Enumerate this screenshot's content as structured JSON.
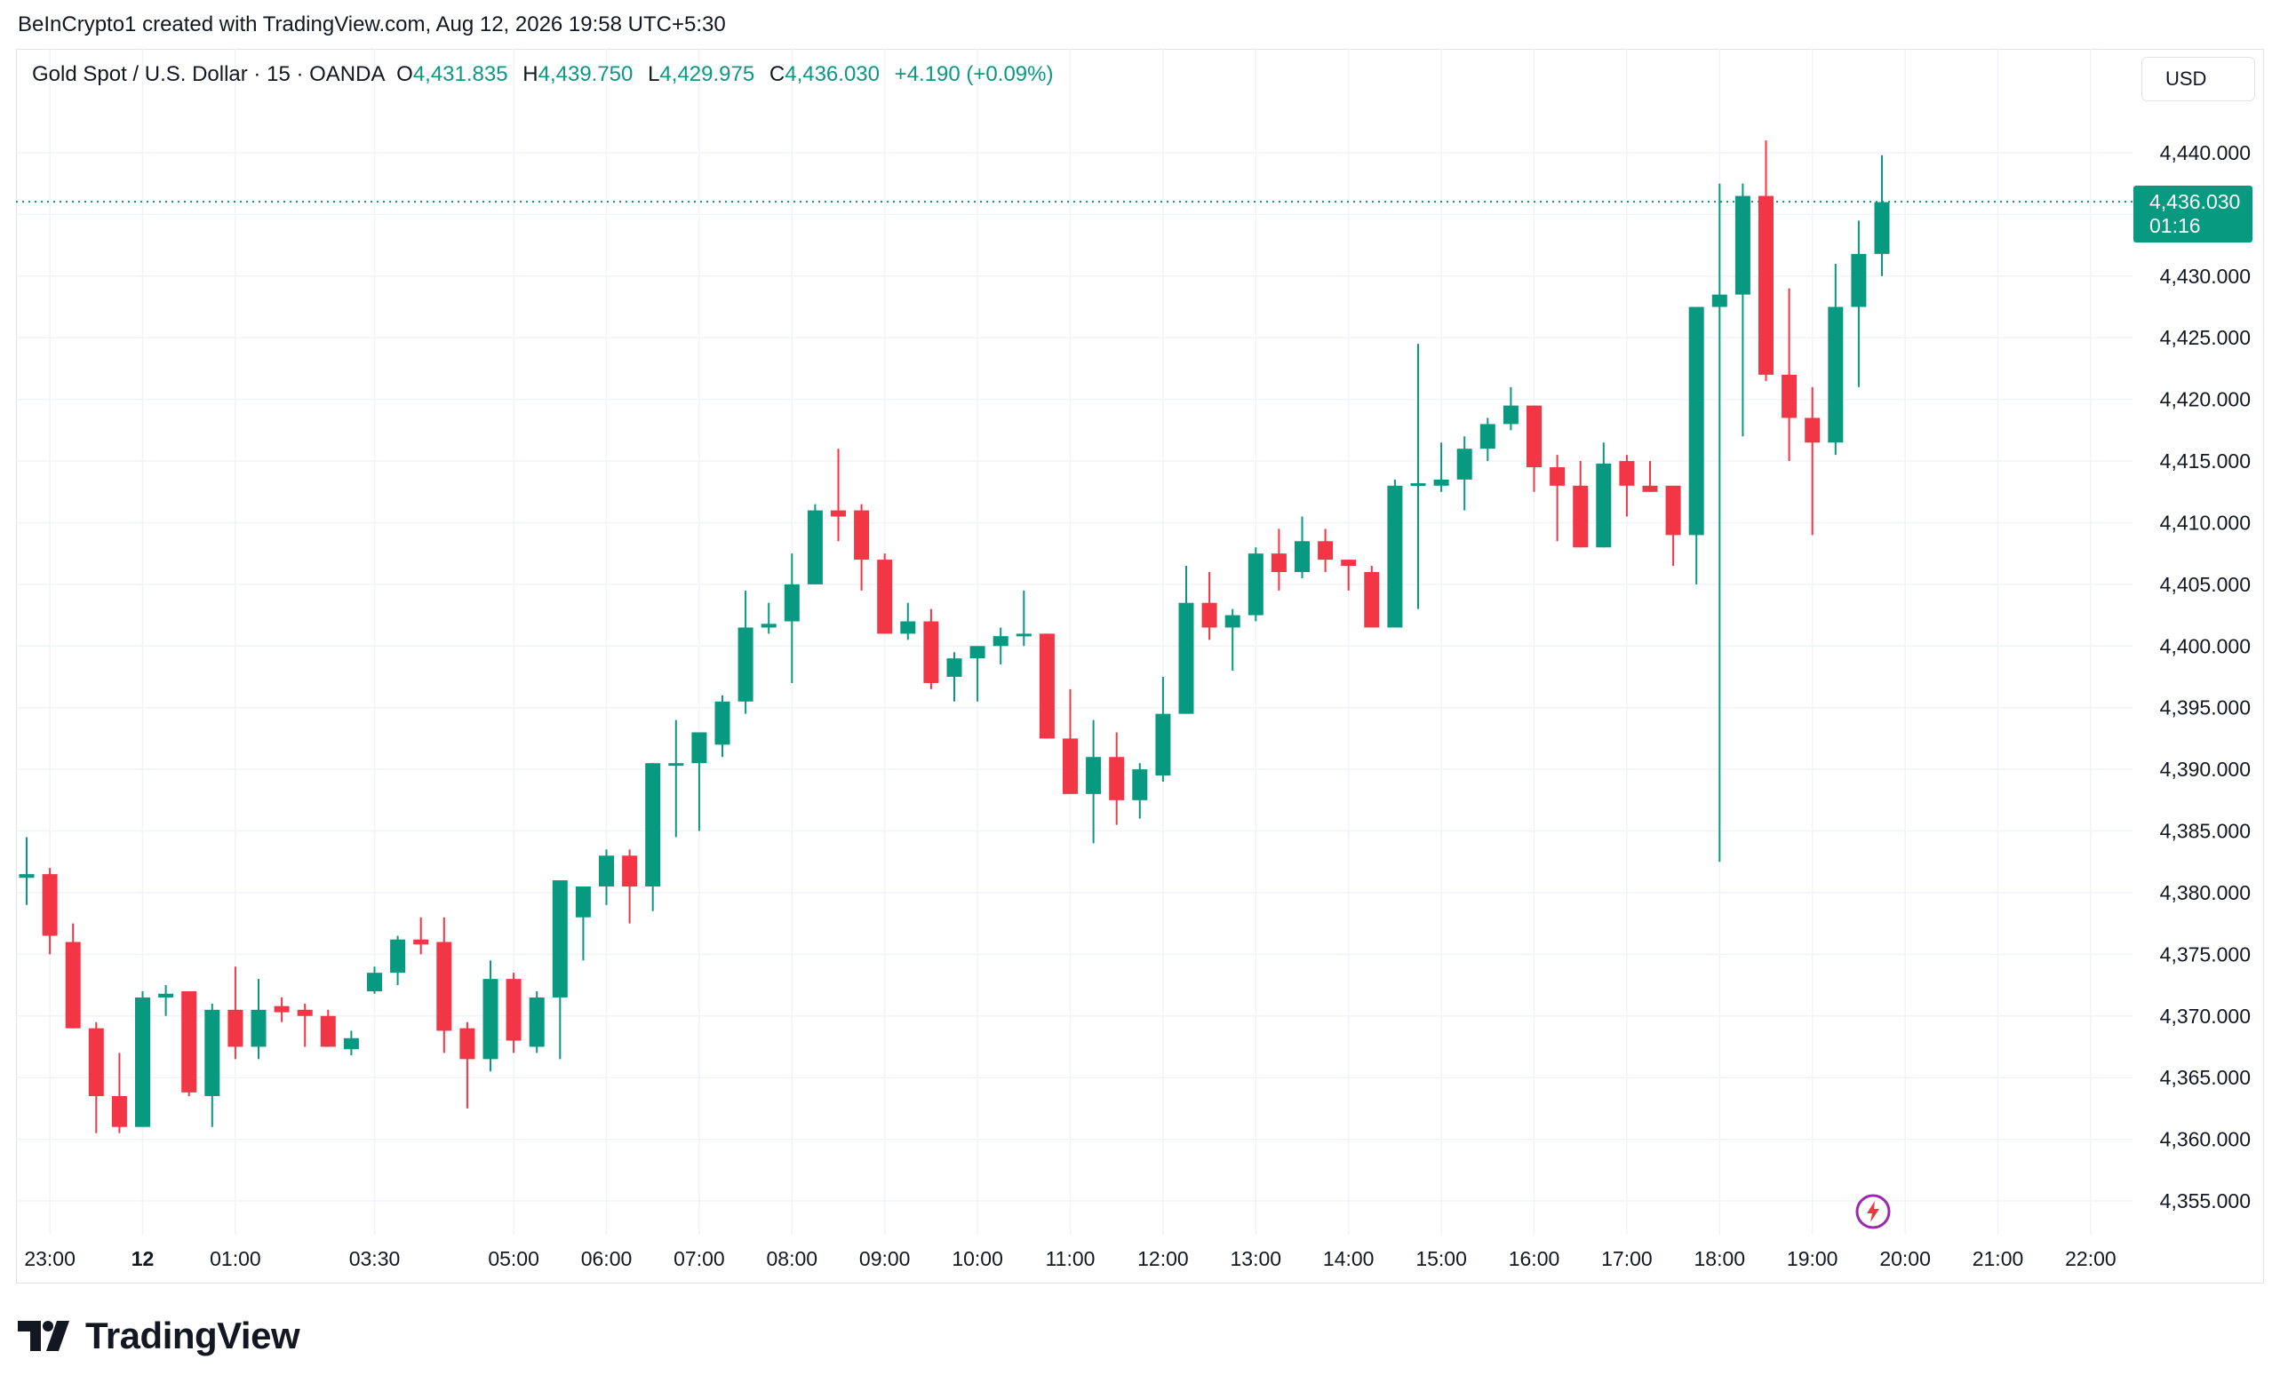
{
  "attribution": "BeInCrypto1 created with TradingView.com, Aug 12, 2026 19:58 UTC+5:30",
  "legend": {
    "symbol": "Gold Spot / U.S. Dollar · 15 · OANDA",
    "o_label": "O",
    "o_value": "4,431.835",
    "h_label": "H",
    "h_value": "4,439.750",
    "l_label": "L",
    "l_value": "4,429.975",
    "c_label": "C",
    "c_value": "4,436.030",
    "change": "+4.190 (+0.09%)"
  },
  "currency": "USD",
  "price_tag": {
    "price": "4,436.030",
    "countdown": "01:16"
  },
  "logo_text": "TradingView",
  "icons": {
    "logo": "tradingview-logo-icon",
    "bolt": "lightning-bolt-icon"
  },
  "colors": {
    "up": "#089981",
    "down": "#f23645",
    "grid": "#f0f3fa",
    "axis_text": "#131722",
    "bolt": "#9c27b0"
  },
  "chart_data": {
    "type": "candlestick",
    "interval_minutes": 15,
    "y_range": [
      4352,
      4445
    ],
    "y_ticks": [
      "4,355.000",
      "4,360.000",
      "4,365.000",
      "4,370.000",
      "4,375.000",
      "4,380.000",
      "4,385.000",
      "4,390.000",
      "4,395.000",
      "4,400.000",
      "4,405.000",
      "4,410.000",
      "4,415.000",
      "4,420.000",
      "4,425.000",
      "4,430.000",
      "4,435.000",
      "4,440.000"
    ],
    "y_tick_values": [
      4355,
      4360,
      4365,
      4370,
      4375,
      4380,
      4385,
      4390,
      4395,
      4400,
      4405,
      4410,
      4415,
      4420,
      4425,
      4430,
      4435,
      4440
    ],
    "x_ticks": [
      {
        "label": "23:00",
        "slot": 1
      },
      {
        "label": "12",
        "slot": 5,
        "bold": true
      },
      {
        "label": "01:00",
        "slot": 9
      },
      {
        "label": "03:30",
        "slot": 15
      },
      {
        "label": "05:00",
        "slot": 21
      },
      {
        "label": "06:00",
        "slot": 25
      },
      {
        "label": "07:00",
        "slot": 29
      },
      {
        "label": "08:00",
        "slot": 33
      },
      {
        "label": "09:00",
        "slot": 37
      },
      {
        "label": "10:00",
        "slot": 41
      },
      {
        "label": "11:00",
        "slot": 45
      },
      {
        "label": "12:00",
        "slot": 49
      },
      {
        "label": "13:00",
        "slot": 53
      },
      {
        "label": "14:00",
        "slot": 57
      },
      {
        "label": "15:00",
        "slot": 61
      },
      {
        "label": "16:00",
        "slot": 65
      },
      {
        "label": "17:00",
        "slot": 69
      },
      {
        "label": "18:00",
        "slot": 73
      },
      {
        "label": "19:00",
        "slot": 77
      },
      {
        "label": "20:00",
        "slot": 81
      },
      {
        "label": "21:00",
        "slot": 85
      },
      {
        "label": "22:00",
        "slot": 89
      }
    ],
    "last_price": 4436.03,
    "candles": [
      {
        "o": 4381.2,
        "h": 4384.5,
        "l": 4379.0,
        "c": 4381.5
      },
      {
        "o": 4381.5,
        "h": 4382.0,
        "l": 4375.0,
        "c": 4376.5
      },
      {
        "o": 4376.0,
        "h": 4377.5,
        "l": 4369.0,
        "c": 4369.0
      },
      {
        "o": 4369.0,
        "h": 4369.5,
        "l": 4360.5,
        "c": 4363.5
      },
      {
        "o": 4363.5,
        "h": 4367.0,
        "l": 4360.5,
        "c": 4361.0
      },
      {
        "o": 4361.0,
        "h": 4372.0,
        "l": 4361.0,
        "c": 4371.5
      },
      {
        "o": 4371.5,
        "h": 4372.5,
        "l": 4370.0,
        "c": 4371.8
      },
      {
        "o": 4372.0,
        "h": 4372.0,
        "l": 4363.5,
        "c": 4363.8
      },
      {
        "o": 4363.5,
        "h": 4371.0,
        "l": 4361.0,
        "c": 4370.5
      },
      {
        "o": 4370.5,
        "h": 4374.0,
        "l": 4366.5,
        "c": 4367.5
      },
      {
        "o": 4367.5,
        "h": 4373.0,
        "l": 4366.5,
        "c": 4370.5
      },
      {
        "o": 4370.8,
        "h": 4371.5,
        "l": 4369.5,
        "c": 4370.3
      },
      {
        "o": 4370.5,
        "h": 4371.0,
        "l": 4367.5,
        "c": 4370.0
      },
      {
        "o": 4370.0,
        "h": 4370.5,
        "l": 4367.5,
        "c": 4367.5
      },
      {
        "o": 4367.3,
        "h": 4368.8,
        "l": 4366.8,
        "c": 4368.2
      },
      {
        "o": 4372.0,
        "h": 4374.0,
        "l": 4371.8,
        "c": 4373.5
      },
      {
        "o": 4373.5,
        "h": 4376.5,
        "l": 4372.5,
        "c": 4376.2
      },
      {
        "o": 4376.2,
        "h": 4378.0,
        "l": 4375.0,
        "c": 4375.8
      },
      {
        "o": 4376.0,
        "h": 4378.0,
        "l": 4367.0,
        "c": 4368.8
      },
      {
        "o": 4369.0,
        "h": 4369.5,
        "l": 4362.5,
        "c": 4366.5
      },
      {
        "o": 4366.5,
        "h": 4374.5,
        "l": 4365.5,
        "c": 4373.0
      },
      {
        "o": 4373.0,
        "h": 4373.5,
        "l": 4367.0,
        "c": 4368.0
      },
      {
        "o": 4367.5,
        "h": 4372.0,
        "l": 4367.0,
        "c": 4371.5
      },
      {
        "o": 4371.5,
        "h": 4381.0,
        "l": 4366.5,
        "c": 4381.0
      },
      {
        "o": 4378.0,
        "h": 4380.5,
        "l": 4374.5,
        "c": 4380.5
      },
      {
        "o": 4380.5,
        "h": 4383.5,
        "l": 4379.0,
        "c": 4383.0
      },
      {
        "o": 4383.0,
        "h": 4383.5,
        "l": 4377.5,
        "c": 4380.5
      },
      {
        "o": 4380.5,
        "h": 4390.5,
        "l": 4378.5,
        "c": 4390.5
      },
      {
        "o": 4390.5,
        "h": 4394.0,
        "l": 4384.5,
        "c": 4390.5
      },
      {
        "o": 4390.5,
        "h": 4393.0,
        "l": 4385.0,
        "c": 4393.0
      },
      {
        "o": 4392.0,
        "h": 4396.0,
        "l": 4391.0,
        "c": 4395.5
      },
      {
        "o": 4395.5,
        "h": 4404.5,
        "l": 4394.5,
        "c": 4401.5
      },
      {
        "o": 4401.5,
        "h": 4403.5,
        "l": 4401.0,
        "c": 4401.8
      },
      {
        "o": 4402.0,
        "h": 4407.5,
        "l": 4397.0,
        "c": 4405.0
      },
      {
        "o": 4405.0,
        "h": 4411.5,
        "l": 4405.0,
        "c": 4411.0
      },
      {
        "o": 4411.0,
        "h": 4416.0,
        "l": 4408.5,
        "c": 4410.5
      },
      {
        "o": 4411.0,
        "h": 4411.5,
        "l": 4404.5,
        "c": 4407.0
      },
      {
        "o": 4407.0,
        "h": 4407.5,
        "l": 4401.0,
        "c": 4401.0
      },
      {
        "o": 4401.0,
        "h": 4403.5,
        "l": 4400.5,
        "c": 4402.0
      },
      {
        "o": 4402.0,
        "h": 4403.0,
        "l": 4396.5,
        "c": 4397.0
      },
      {
        "o": 4397.5,
        "h": 4399.5,
        "l": 4395.5,
        "c": 4399.0
      },
      {
        "o": 4399.0,
        "h": 4400.0,
        "l": 4395.5,
        "c": 4400.0
      },
      {
        "o": 4400.0,
        "h": 4401.5,
        "l": 4398.5,
        "c": 4400.8
      },
      {
        "o": 4401.0,
        "h": 4404.5,
        "l": 4400.0,
        "c": 4401.0
      },
      {
        "o": 4401.0,
        "h": 4401.0,
        "l": 4392.5,
        "c": 4392.5
      },
      {
        "o": 4392.5,
        "h": 4396.5,
        "l": 4388.0,
        "c": 4388.0
      },
      {
        "o": 4388.0,
        "h": 4394.0,
        "l": 4384.0,
        "c": 4391.0
      },
      {
        "o": 4391.0,
        "h": 4393.0,
        "l": 4385.5,
        "c": 4387.5
      },
      {
        "o": 4387.5,
        "h": 4390.5,
        "l": 4386.0,
        "c": 4390.0
      },
      {
        "o": 4389.5,
        "h": 4397.5,
        "l": 4389.0,
        "c": 4394.5
      },
      {
        "o": 4394.5,
        "h": 4406.5,
        "l": 4394.5,
        "c": 4403.5
      },
      {
        "o": 4403.5,
        "h": 4406.0,
        "l": 4400.5,
        "c": 4401.5
      },
      {
        "o": 4401.5,
        "h": 4403.0,
        "l": 4398.0,
        "c": 4402.5
      },
      {
        "o": 4402.5,
        "h": 4408.0,
        "l": 4402.0,
        "c": 4407.5
      },
      {
        "o": 4407.5,
        "h": 4409.5,
        "l": 4404.5,
        "c": 4406.0
      },
      {
        "o": 4406.0,
        "h": 4410.5,
        "l": 4405.5,
        "c": 4408.5
      },
      {
        "o": 4408.5,
        "h": 4409.5,
        "l": 4406.0,
        "c": 4407.0
      },
      {
        "o": 4407.0,
        "h": 4407.0,
        "l": 4404.5,
        "c": 4406.5
      },
      {
        "o": 4406.0,
        "h": 4406.5,
        "l": 4401.5,
        "c": 4401.5
      },
      {
        "o": 4401.5,
        "h": 4413.5,
        "l": 4401.5,
        "c": 4413.0
      },
      {
        "o": 4413.0,
        "h": 4424.5,
        "l": 4403.0,
        "c": 4413.2
      },
      {
        "o": 4413.0,
        "h": 4416.5,
        "l": 4412.5,
        "c": 4413.5
      },
      {
        "o": 4413.5,
        "h": 4417.0,
        "l": 4411.0,
        "c": 4416.0
      },
      {
        "o": 4416.0,
        "h": 4418.5,
        "l": 4415.0,
        "c": 4418.0
      },
      {
        "o": 4418.0,
        "h": 4421.0,
        "l": 4417.5,
        "c": 4419.5
      },
      {
        "o": 4419.5,
        "h": 4419.5,
        "l": 4412.5,
        "c": 4414.5
      },
      {
        "o": 4414.5,
        "h": 4415.5,
        "l": 4408.5,
        "c": 4413.0
      },
      {
        "o": 4413.0,
        "h": 4415.0,
        "l": 4408.0,
        "c": 4408.0
      },
      {
        "o": 4408.0,
        "h": 4416.5,
        "l": 4408.0,
        "c": 4414.8
      },
      {
        "o": 4415.0,
        "h": 4415.5,
        "l": 4410.5,
        "c": 4413.0
      },
      {
        "o": 4413.0,
        "h": 4415.0,
        "l": 4412.5,
        "c": 4412.5
      },
      {
        "o": 4413.0,
        "h": 4413.0,
        "l": 4406.5,
        "c": 4409.0
      },
      {
        "o": 4409.0,
        "h": 4427.5,
        "l": 4405.0,
        "c": 4427.5
      },
      {
        "o": 4427.5,
        "h": 4437.5,
        "l": 4382.5,
        "c": 4428.5
      },
      {
        "o": 4428.5,
        "h": 4437.5,
        "l": 4417.0,
        "c": 4436.5
      },
      {
        "o": 4436.5,
        "h": 4441.0,
        "l": 4421.5,
        "c": 4422.0
      },
      {
        "o": 4422.0,
        "h": 4429.0,
        "l": 4415.0,
        "c": 4418.5
      },
      {
        "o": 4418.5,
        "h": 4421.0,
        "l": 4409.0,
        "c": 4416.5
      },
      {
        "o": 4416.5,
        "h": 4431.0,
        "l": 4415.5,
        "c": 4427.5
      },
      {
        "o": 4427.5,
        "h": 4434.5,
        "l": 4421.0,
        "c": 4431.8
      },
      {
        "o": 4431.8,
        "h": 4439.8,
        "l": 4430.0,
        "c": 4436.0
      }
    ]
  }
}
